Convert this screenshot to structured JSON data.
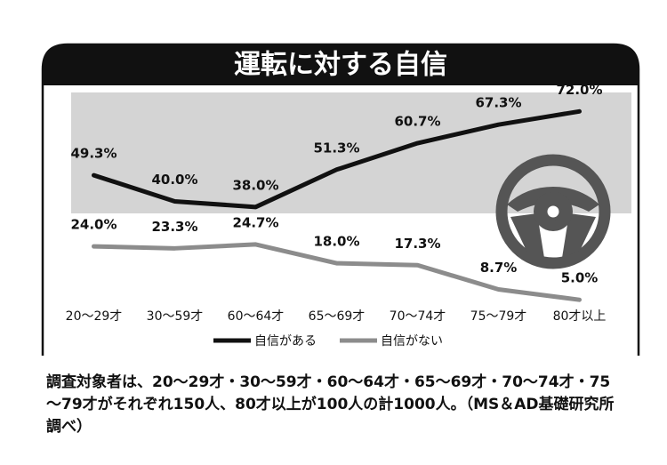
{
  "chart_data": {
    "type": "line",
    "title": "運転に対する自信",
    "categories": [
      "20～29才",
      "30～59才",
      "60～64才",
      "65～69才",
      "70～74才",
      "75～79才",
      "80才以上"
    ],
    "series": [
      {
        "name": "自信がある",
        "color": "#111111",
        "values": [
          49.3,
          40.0,
          38.0,
          51.3,
          60.7,
          67.3,
          72.0
        ],
        "value_labels": [
          "49.3%",
          "40.0%",
          "38.0%",
          "51.3%",
          "60.7%",
          "67.3%",
          "72.0%"
        ]
      },
      {
        "name": "自信がない",
        "color": "#8c8c8c",
        "values": [
          24.0,
          23.3,
          24.7,
          18.0,
          17.3,
          8.7,
          5.0
        ],
        "value_labels": [
          "24.0%",
          "23.3%",
          "24.7%",
          "18.0%",
          "17.3%",
          "8.7%",
          "5.0%"
        ]
      }
    ],
    "ylim": [
      0,
      80
    ],
    "legend": "bottom",
    "note": "調査対象者は、20～29才・30～59才・60～64才・65～69才・70～74才・75～79才がそれぞれ150人、80才以上が100人の計1000人。（MS＆AD基礎研究所調べ）"
  }
}
